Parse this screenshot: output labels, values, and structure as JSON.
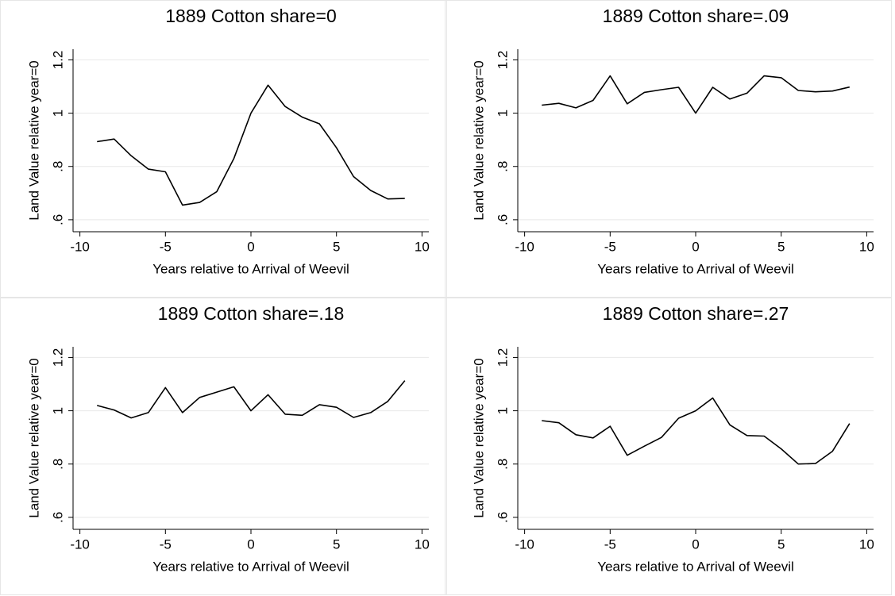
{
  "chart_data": [
    {
      "type": "line",
      "title": "1889 Cotton share=0",
      "xlabel": "Years relative to Arrival of Weevil",
      "ylabel": "Land Value relative year=0",
      "x": [
        -9,
        -8,
        -7,
        -6,
        -5,
        -4,
        -3,
        -2,
        -1,
        0,
        1,
        2,
        3,
        4,
        5,
        6,
        7,
        8,
        9
      ],
      "values": [
        0.893,
        0.903,
        0.84,
        0.79,
        0.78,
        0.655,
        0.665,
        0.705,
        0.83,
        1.0,
        1.105,
        1.025,
        0.985,
        0.96,
        0.87,
        0.762,
        0.71,
        0.678,
        0.68
      ],
      "color": "#000000",
      "xlim": [
        -10.4,
        10.4
      ],
      "xticks": [
        -10,
        -5,
        0,
        5,
        10
      ],
      "ylim": [
        0.555,
        1.24
      ],
      "yticks": [
        {
          "value": 0.6,
          "label": ".6"
        },
        {
          "value": 0.8,
          "label": ".8"
        },
        1,
        1.2
      ],
      "grid": true
    },
    {
      "type": "line",
      "title": "1889 Cotton share=.09",
      "xlabel": "Years relative to Arrival of Weevil",
      "ylabel": "Land Value relative year=0",
      "x": [
        -9,
        -8,
        -7,
        -6,
        -5,
        -4,
        -3,
        -2,
        -1,
        0,
        1,
        2,
        3,
        4,
        5,
        6,
        7,
        8,
        9
      ],
      "values": [
        1.03,
        1.037,
        1.02,
        1.048,
        1.14,
        1.035,
        1.078,
        1.088,
        1.097,
        1.0,
        1.097,
        1.053,
        1.075,
        1.14,
        1.133,
        1.085,
        1.08,
        1.083,
        1.098
      ],
      "color": "#000000",
      "xlim": [
        -10.4,
        10.4
      ],
      "xticks": [
        -10,
        -5,
        0,
        5,
        10
      ],
      "ylim": [
        0.555,
        1.24
      ],
      "yticks": [
        {
          "value": 0.6,
          "label": ".6"
        },
        {
          "value": 0.8,
          "label": ".8"
        },
        1,
        1.2
      ],
      "grid": true
    },
    {
      "type": "line",
      "title": "1889 Cotton share=.18",
      "xlabel": "Years relative to Arrival of Weevil",
      "ylabel": "Land Value relative year=0",
      "x": [
        -9,
        -8,
        -7,
        -6,
        -5,
        -4,
        -3,
        -2,
        -1,
        0,
        1,
        2,
        3,
        4,
        5,
        6,
        7,
        8,
        9
      ],
      "values": [
        1.02,
        1.003,
        0.973,
        0.993,
        1.087,
        0.993,
        1.05,
        1.07,
        1.09,
        1.0,
        1.06,
        0.987,
        0.983,
        1.023,
        1.013,
        0.975,
        0.993,
        1.035,
        1.113
      ],
      "color": "#000000",
      "xlim": [
        -10.4,
        10.4
      ],
      "xticks": [
        -10,
        -5,
        0,
        5,
        10
      ],
      "ylim": [
        0.555,
        1.24
      ],
      "yticks": [
        {
          "value": 0.6,
          "label": ".6"
        },
        {
          "value": 0.8,
          "label": ".8"
        },
        1,
        1.2
      ],
      "grid": true
    },
    {
      "type": "line",
      "title": "1889 Cotton share=.27",
      "xlabel": "Years relative to Arrival of Weevil",
      "ylabel": "Land Value relative year=0",
      "x": [
        -9,
        -8,
        -7,
        -6,
        -5,
        -4,
        -3,
        -2,
        -1,
        0,
        1,
        2,
        3,
        4,
        5,
        6,
        7,
        8,
        9
      ],
      "values": [
        0.963,
        0.955,
        0.91,
        0.898,
        0.942,
        0.833,
        0.867,
        0.9,
        0.972,
        1.0,
        1.048,
        0.947,
        0.907,
        0.905,
        0.857,
        0.8,
        0.802,
        0.848,
        0.952
      ],
      "color": "#000000",
      "xlim": [
        -10.4,
        10.4
      ],
      "xticks": [
        -10,
        -5,
        0,
        5,
        10
      ],
      "ylim": [
        0.555,
        1.24
      ],
      "yticks": [
        {
          "value": 0.6,
          "label": ".6"
        },
        {
          "value": 0.8,
          "label": ".8"
        },
        1,
        1.2
      ],
      "grid": true
    }
  ]
}
